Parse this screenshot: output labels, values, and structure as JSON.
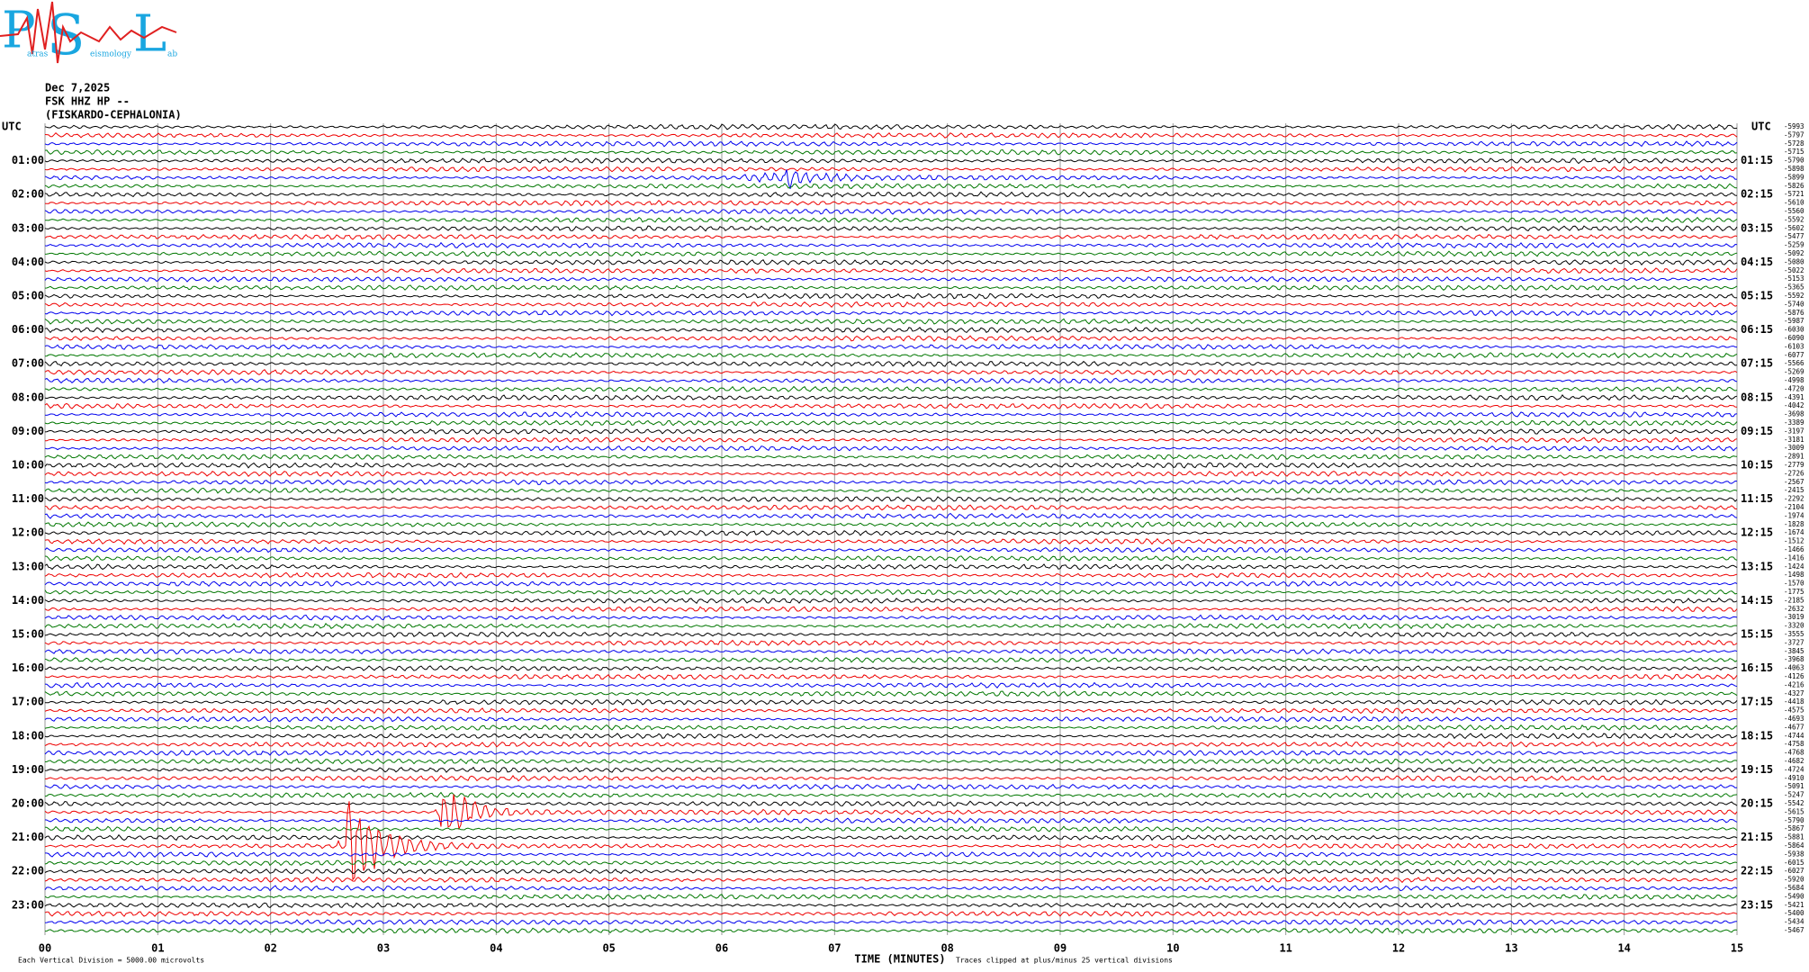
{
  "logo": {
    "letters": [
      "P",
      "S",
      "L"
    ],
    "words": [
      "atras",
      "eismology",
      "ab"
    ]
  },
  "header": {
    "date": "Dec 7,2025",
    "station": "FSK HHZ HP --",
    "location": "(FISKARDO-CEPHALONIA)"
  },
  "left_labels": [
    "UTC",
    "01:00",
    "02:00",
    "03:00",
    "04:00",
    "05:00",
    "06:00",
    "07:00",
    "08:00",
    "09:00",
    "10:00",
    "11:00",
    "12:00",
    "13:00",
    "14:00",
    "15:00",
    "16:00",
    "17:00",
    "18:00",
    "19:00",
    "20:00",
    "21:00",
    "22:00",
    "23:00"
  ],
  "right_labels": [
    "UTC",
    "01:15",
    "02:15",
    "03:15",
    "04:15",
    "05:15",
    "06:15",
    "07:15",
    "08:15",
    "09:15",
    "10:15",
    "11:15",
    "12:15",
    "13:15",
    "14:15",
    "15:15",
    "16:15",
    "17:15",
    "18:15",
    "19:15",
    "20:15",
    "21:15",
    "22:15",
    "23:15"
  ],
  "trace_offsets": [
    -5993,
    -5797,
    -5728,
    -5715,
    -5790,
    -5898,
    -5899,
    -5826,
    -5721,
    -5610,
    -5560,
    -5592,
    -5602,
    -5477,
    -5259,
    -5092,
    -5080,
    -5022,
    -5153,
    -5365,
    -5592,
    -5740,
    -5876,
    -5987,
    -6030,
    -6090,
    -6103,
    -6077,
    -5566,
    -5269,
    -4998,
    -4720,
    -4391,
    -4042,
    -3698,
    -3389,
    -3197,
    -3181,
    -3009,
    -2891,
    -2779,
    -2726,
    -2567,
    -2415,
    -2292,
    -2104,
    -1974,
    -1828,
    -1674,
    -1512,
    -1466,
    -1416,
    -1424,
    -1498,
    -1570,
    -1775,
    -2185,
    -2632,
    -3019,
    -3320,
    -3555,
    -3727,
    -3845,
    -3968,
    -4063,
    -4126,
    -4216,
    -4327,
    -4418,
    -4575,
    -4693,
    -4677,
    -4744,
    -4758,
    -4768,
    -4682,
    -4724,
    -4910,
    -5091,
    -5247,
    -5542,
    -5615,
    -5790,
    -5867,
    -5881,
    -5864,
    -5938,
    -6015,
    -6027,
    -5920,
    -5684,
    -5490,
    -5421,
    -5400,
    -5434,
    -5467
  ],
  "x_axis": {
    "ticks": [
      "00",
      "01",
      "02",
      "03",
      "04",
      "05",
      "06",
      "07",
      "08",
      "09",
      "10",
      "11",
      "12",
      "13",
      "14",
      "15"
    ],
    "label": "TIME (MINUTES)"
  },
  "footer": {
    "scale": "Each Vertical Division = 5000.00 microvolts",
    "clip": "Traces clipped at plus/minus 25 vertical divisions"
  }
}
